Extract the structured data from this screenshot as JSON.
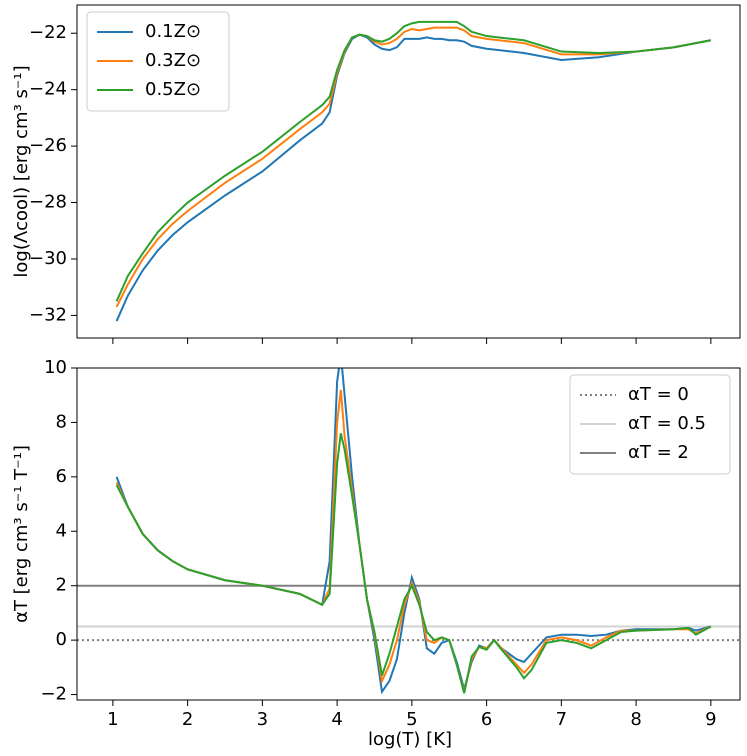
{
  "chart_data": [
    {
      "type": "line",
      "ylabel": "log(Λcool) [erg cm³ s⁻¹]",
      "x": [
        1.05,
        1.2,
        1.4,
        1.6,
        1.8,
        2.0,
        2.5,
        3.0,
        3.5,
        3.8,
        3.9,
        4.0,
        4.1,
        4.2,
        4.3,
        4.4,
        4.5,
        4.6,
        4.7,
        4.8,
        4.9,
        5.0,
        5.1,
        5.2,
        5.3,
        5.4,
        5.5,
        5.6,
        5.7,
        5.8,
        6.0,
        6.5,
        7.0,
        7.5,
        8.0,
        8.5,
        9.0
      ],
      "series": [
        {
          "name": "0.1Z⊙",
          "color": "#1f77b4",
          "values": [
            -32.2,
            -31.3,
            -30.4,
            -29.7,
            -29.15,
            -28.7,
            -27.75,
            -26.9,
            -25.8,
            -25.2,
            -24.8,
            -23.5,
            -22.7,
            -22.2,
            -22.05,
            -22.15,
            -22.4,
            -22.55,
            -22.6,
            -22.5,
            -22.2,
            -22.2,
            -22.2,
            -22.15,
            -22.2,
            -22.2,
            -22.25,
            -22.25,
            -22.3,
            -22.45,
            -22.55,
            -22.7,
            -22.95,
            -22.85,
            -22.65,
            -22.5,
            -22.25
          ]
        },
        {
          "name": "0.3Z⊙",
          "color": "#ff7f0e",
          "values": [
            -31.7,
            -30.9,
            -30.0,
            -29.3,
            -28.75,
            -28.3,
            -27.3,
            -26.45,
            -25.4,
            -24.8,
            -24.5,
            -23.4,
            -22.65,
            -22.15,
            -22.05,
            -22.1,
            -22.3,
            -22.4,
            -22.35,
            -22.2,
            -21.95,
            -21.85,
            -21.9,
            -21.85,
            -21.8,
            -21.8,
            -21.8,
            -21.8,
            -21.9,
            -22.1,
            -22.2,
            -22.35,
            -22.75,
            -22.75,
            -22.65,
            -22.5,
            -22.25
          ]
        },
        {
          "name": "0.5Z⊙",
          "color": "#2ca02c",
          "values": [
            -31.5,
            -30.6,
            -29.8,
            -29.05,
            -28.5,
            -28.0,
            -27.05,
            -26.2,
            -25.15,
            -24.55,
            -24.25,
            -23.3,
            -22.6,
            -22.15,
            -22.05,
            -22.1,
            -22.25,
            -22.3,
            -22.2,
            -22.0,
            -21.75,
            -21.65,
            -21.6,
            -21.6,
            -21.6,
            -21.6,
            -21.6,
            -21.6,
            -21.75,
            -21.95,
            -22.1,
            -22.25,
            -22.65,
            -22.7,
            -22.65,
            -22.5,
            -22.25
          ]
        }
      ],
      "xlim": [
        0.52,
        9.39
      ],
      "ylim": [
        -32.8,
        -21.0
      ],
      "yticks": [
        {
          "value": -32,
          "label": "−32"
        },
        {
          "value": -30,
          "label": "−30"
        },
        {
          "value": -28,
          "label": "−28"
        },
        {
          "value": -26,
          "label": "−26"
        },
        {
          "value": -24,
          "label": "−24"
        },
        {
          "value": -22,
          "label": "−22"
        }
      ],
      "legend": "upper left"
    },
    {
      "type": "line",
      "xlabel": "log(T) [K]",
      "ylabel": "αT [erg cm³ s⁻¹ T⁻¹]",
      "x": [
        1.05,
        1.2,
        1.4,
        1.6,
        1.8,
        2.0,
        2.5,
        3.0,
        3.5,
        3.8,
        3.9,
        4.0,
        4.05,
        4.1,
        4.2,
        4.3,
        4.4,
        4.5,
        4.6,
        4.7,
        4.8,
        4.9,
        5.0,
        5.1,
        5.2,
        5.3,
        5.4,
        5.5,
        5.6,
        5.7,
        5.8,
        5.9,
        6.0,
        6.1,
        6.2,
        6.4,
        6.5,
        6.6,
        6.8,
        7.0,
        7.2,
        7.4,
        7.6,
        7.8,
        8.0,
        8.5,
        8.7,
        8.8,
        9.0
      ],
      "series": [
        {
          "color": "#1f77b4",
          "values": [
            6.0,
            4.9,
            3.9,
            3.3,
            2.9,
            2.6,
            2.2,
            2.0,
            1.7,
            1.3,
            2.9,
            9.5,
            10.5,
            9.0,
            6.0,
            3.5,
            1.5,
            0.0,
            -1.9,
            -1.5,
            -0.7,
            1.0,
            2.3,
            1.5,
            -0.3,
            -0.5,
            -0.1,
            0.0,
            -0.8,
            -1.8,
            -0.8,
            -0.2,
            -0.3,
            0.0,
            -0.3,
            -0.7,
            -0.8,
            -0.5,
            0.1,
            0.2,
            0.2,
            0.15,
            0.2,
            0.35,
            0.4,
            0.4,
            0.45,
            0.35,
            0.5
          ]
        },
        {
          "color": "#ff7f0e",
          "values": [
            5.8,
            4.9,
            3.9,
            3.3,
            2.9,
            2.6,
            2.2,
            2.0,
            1.7,
            1.3,
            1.9,
            8.0,
            9.2,
            7.5,
            5.5,
            3.5,
            1.5,
            0.2,
            -1.5,
            -0.9,
            0.0,
            1.3,
            2.1,
            1.4,
            0.0,
            -0.1,
            0.1,
            0.0,
            -0.9,
            -1.9,
            -0.7,
            -0.25,
            -0.3,
            0.0,
            -0.3,
            -0.9,
            -1.2,
            -0.9,
            0.0,
            0.1,
            0.0,
            -0.2,
            0.1,
            0.35,
            0.35,
            0.4,
            0.4,
            0.25,
            0.5
          ]
        },
        {
          "color": "#2ca02c",
          "values": [
            5.7,
            4.9,
            3.9,
            3.3,
            2.9,
            2.6,
            2.2,
            2.0,
            1.7,
            1.3,
            1.7,
            6.5,
            7.6,
            7.0,
            5.3,
            3.5,
            1.5,
            0.3,
            -1.3,
            -0.5,
            0.5,
            1.5,
            2.0,
            1.3,
            0.3,
            0.0,
            0.1,
            0.0,
            -0.9,
            -1.95,
            -0.6,
            -0.25,
            -0.35,
            0.0,
            -0.35,
            -1.0,
            -1.4,
            -1.1,
            -0.1,
            0.0,
            -0.1,
            -0.3,
            0.0,
            0.3,
            0.35,
            0.4,
            0.45,
            0.2,
            0.5
          ]
        }
      ],
      "hlines": [
        {
          "name": "αT = 0",
          "value": 0,
          "color": "#808080",
          "style": "dotted"
        },
        {
          "name": "αT = 0.5",
          "value": 0.5,
          "color": "#d3d3d3",
          "style": "solid"
        },
        {
          "name": "αT = 2",
          "value": 2,
          "color": "#808080",
          "style": "solid"
        }
      ],
      "xlim": [
        0.52,
        9.39
      ],
      "ylim": [
        -2.2,
        10
      ],
      "xticks": [
        1,
        2,
        3,
        4,
        5,
        6,
        7,
        8,
        9
      ],
      "yticks": [
        {
          "value": -2,
          "label": "−2"
        },
        0,
        2,
        4,
        6,
        8,
        10
      ],
      "legend": "upper right"
    }
  ]
}
